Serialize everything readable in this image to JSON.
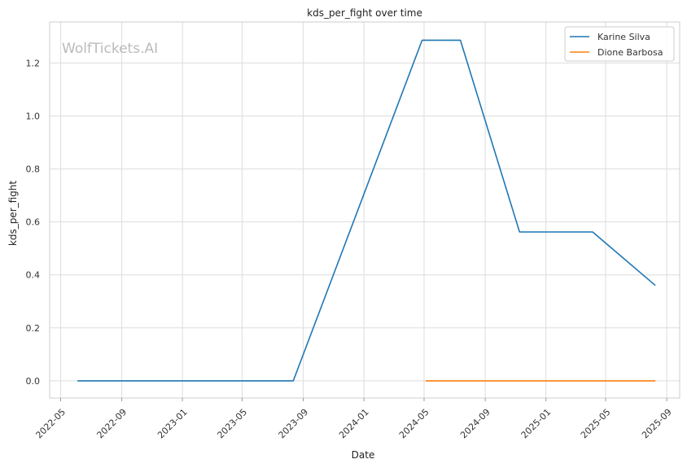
{
  "chart_data": {
    "type": "line",
    "title": "kds_per_fight over time",
    "xlabel": "Date",
    "ylabel": "kds_per_fight",
    "watermark": "WolfTickets.AI",
    "xlim": [
      "2022-04-09",
      "2025-09-27"
    ],
    "ylim": [
      -0.065,
      1.355
    ],
    "x_ticks": [
      "2022-05",
      "2022-09",
      "2023-01",
      "2023-05",
      "2023-09",
      "2024-01",
      "2024-05",
      "2024-09",
      "2025-01",
      "2025-05",
      "2025-09"
    ],
    "y_ticks": [
      "0.0",
      "0.2",
      "0.4",
      "0.6",
      "0.8",
      "1.0",
      "1.2"
    ],
    "grid": true,
    "legend_position": "top-right",
    "series": [
      {
        "name": "Karine Silva",
        "color": "#1f77b4",
        "x": [
          "2022-06-04",
          "2023-08-12",
          "2024-04-27",
          "2024-07-13",
          "2024-11-09",
          "2025-04-05",
          "2025-08-09"
        ],
        "y": [
          0.0,
          0.0,
          1.286,
          1.286,
          0.562,
          0.562,
          0.36
        ]
      },
      {
        "name": "Dione Barbosa",
        "color": "#ff7f0e",
        "x": [
          "2024-05-04",
          "2024-11-09",
          "2025-04-05",
          "2025-08-09"
        ],
        "y": [
          0.0,
          0.0,
          0.0,
          0.0
        ]
      }
    ]
  }
}
